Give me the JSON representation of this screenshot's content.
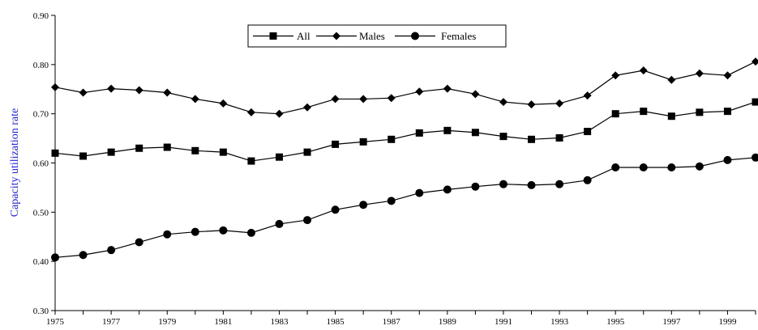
{
  "chart_data": {
    "type": "line",
    "title": "",
    "xlabel": "",
    "ylabel": "Capacity utilization rate",
    "x": [
      1975,
      1976,
      1977,
      1978,
      1979,
      1980,
      1981,
      1982,
      1983,
      1984,
      1985,
      1986,
      1987,
      1988,
      1989,
      1990,
      1991,
      1992,
      1993,
      1994,
      1995,
      1996,
      1997,
      1998,
      1999,
      2000
    ],
    "x_tick_labels": [
      "1975",
      "1977",
      "1979",
      "1981",
      "1983",
      "1985",
      "1987",
      "1989",
      "1991",
      "1993",
      "1995",
      "1997",
      "1999"
    ],
    "y_tick_labels": [
      "0.30",
      "0.40",
      "0.50",
      "0.60",
      "0.70",
      "0.80",
      "0.90"
    ],
    "ylim": [
      0.3,
      0.9
    ],
    "grid": false,
    "legend_position": "top-center",
    "series": [
      {
        "name": "All",
        "marker": "square",
        "values": [
          0.62,
          0.614,
          0.622,
          0.63,
          0.632,
          0.625,
          0.622,
          0.604,
          0.612,
          0.622,
          0.638,
          0.643,
          0.648,
          0.661,
          0.666,
          0.662,
          0.654,
          0.648,
          0.651,
          0.664,
          0.7,
          0.705,
          0.695,
          0.703,
          0.705,
          0.724
        ]
      },
      {
        "name": "Males",
        "marker": "diamond",
        "values": [
          0.754,
          0.743,
          0.751,
          0.748,
          0.743,
          0.73,
          0.721,
          0.703,
          0.7,
          0.713,
          0.73,
          0.73,
          0.732,
          0.745,
          0.751,
          0.74,
          0.724,
          0.719,
          0.721,
          0.737,
          0.778,
          0.788,
          0.769,
          0.782,
          0.778,
          0.806
        ]
      },
      {
        "name": "Females",
        "marker": "circle",
        "values": [
          0.408,
          0.413,
          0.423,
          0.439,
          0.455,
          0.46,
          0.463,
          0.458,
          0.476,
          0.484,
          0.505,
          0.515,
          0.523,
          0.539,
          0.546,
          0.552,
          0.557,
          0.555,
          0.557,
          0.565,
          0.591,
          0.591,
          0.591,
          0.593,
          0.606,
          0.611
        ]
      }
    ],
    "colors": {
      "line": "#000000",
      "ylabel": "#2222dd"
    }
  }
}
